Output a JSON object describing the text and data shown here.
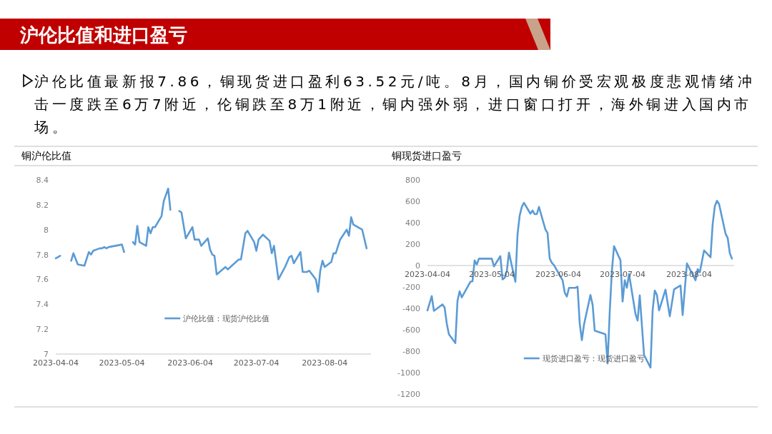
{
  "chart_data": [
    {
      "type": "other",
      "title": "沪伦比值和进口盈亏",
      "annotations": [
        "沪伦比值最新报7.86，铜现货进口盈利63.52元/吨。8月，国内铜价受宏观极度悲观情绪冲击一度跌至6万7附近，伦铜跌至8万1附近，铜内强外弱，进口窗口打开，海外铜进入国内市场。"
      ]
    },
    {
      "type": "line",
      "title": "铜沪伦比值",
      "xlim": [
        "2023-04-04",
        "2023-08-25"
      ],
      "xticks": [
        "2023-04-04",
        "2023-05-04",
        "2023-06-04",
        "2023-07-04",
        "2023-08-04"
      ],
      "ylim": [
        7,
        8.4
      ],
      "yticks": [
        7,
        7.2,
        7.4,
        7.6,
        7.8,
        8,
        8.2,
        8.4
      ],
      "legend": "bottom",
      "x": [
        "2023-04-04",
        "2023-04-06",
        "2023-04-08",
        "2023-04-11",
        "2023-04-12",
        "2023-04-14",
        "2023-04-17",
        "2023-04-19",
        "2023-04-20",
        "2023-04-21",
        "2023-04-24",
        "2023-04-25",
        "2023-04-26",
        "2023-04-27",
        "2023-04-28",
        "2023-05-04",
        "2023-05-05",
        "2023-05-07",
        "2023-05-09",
        "2023-05-10",
        "2023-05-11",
        "2023-05-12",
        "2023-05-15",
        "2023-05-16",
        "2023-05-17",
        "2023-05-18",
        "2023-05-19",
        "2023-05-22",
        "2023-05-23",
        "2023-05-25",
        "2023-05-26",
        "2023-05-28",
        "2023-05-30",
        "2023-05-31",
        "2023-06-02",
        "2023-06-05",
        "2023-06-06",
        "2023-06-08",
        "2023-06-09",
        "2023-06-12",
        "2023-06-13",
        "2023-06-14",
        "2023-06-15",
        "2023-06-16",
        "2023-06-20",
        "2023-06-21",
        "2023-06-26",
        "2023-06-27",
        "2023-06-29",
        "2023-06-30",
        "2023-07-03",
        "2023-07-04",
        "2023-07-05",
        "2023-07-07",
        "2023-07-10",
        "2023-07-11",
        "2023-07-12",
        "2023-07-14",
        "2023-07-17",
        "2023-07-19",
        "2023-07-20",
        "2023-07-21",
        "2023-07-24",
        "2023-07-25",
        "2023-07-27",
        "2023-07-28",
        "2023-07-31",
        "2023-08-01",
        "2023-08-02",
        "2023-08-03",
        "2023-08-04",
        "2023-08-07",
        "2023-08-08",
        "2023-08-09",
        "2023-08-11",
        "2023-08-14",
        "2023-08-15",
        "2023-08-16",
        "2023-08-17",
        "2023-08-21",
        "2023-08-23"
      ],
      "series": [
        {
          "name": "沪伦比值：现货沪伦比值",
          "color": "#5b9bd5",
          "values": [
            7.77,
            7.79,
            null,
            7.75,
            7.81,
            7.72,
            7.71,
            7.82,
            7.8,
            7.83,
            7.85,
            7.85,
            7.86,
            7.85,
            7.86,
            7.88,
            7.82,
            null,
            7.9,
            7.88,
            8.03,
            7.9,
            7.87,
            8.02,
            7.97,
            8.02,
            8.02,
            8.11,
            8.23,
            8.33,
            8.16,
            null,
            8.15,
            8.14,
            7.93,
            8.02,
            7.92,
            7.92,
            7.87,
            7.93,
            7.84,
            7.8,
            7.79,
            7.64,
            7.7,
            7.68,
            7.76,
            7.76,
            7.97,
            7.99,
            7.9,
            7.83,
            7.92,
            7.96,
            7.91,
            7.81,
            7.87,
            7.6,
            7.7,
            7.78,
            7.79,
            7.73,
            7.82,
            7.66,
            7.66,
            7.67,
            7.6,
            7.5,
            7.67,
            7.75,
            7.7,
            7.74,
            7.81,
            7.81,
            7.92,
            8,
            7.95,
            8.1,
            8.04,
            8,
            7.85
          ]
        }
      ]
    },
    {
      "type": "line",
      "title": "铜现货进口盈亏",
      "xlim": [
        "2023-04-04",
        "2023-08-25"
      ],
      "xticks": [
        "2023-04-04",
        "2023-05-04",
        "2023-06-04",
        "2023-07-04",
        "2023-08-04"
      ],
      "ylim": [
        -1200,
        800
      ],
      "yticks": [
        -1200,
        -1000,
        -800,
        -600,
        -400,
        -200,
        0,
        200,
        400,
        600,
        800
      ],
      "legend": "bottom",
      "x": [
        "2023-04-04",
        "2023-04-06",
        "2023-04-07",
        "2023-04-11",
        "2023-04-12",
        "2023-04-13",
        "2023-04-14",
        "2023-04-17",
        "2023-04-18",
        "2023-04-19",
        "2023-04-20",
        "2023-04-24",
        "2023-04-25",
        "2023-04-26",
        "2023-04-27",
        "2023-04-28",
        "2023-05-04",
        "2023-05-05",
        "2023-05-08",
        "2023-05-09",
        "2023-05-10",
        "2023-05-11",
        "2023-05-12",
        "2023-05-15",
        "2023-05-16",
        "2023-05-17",
        "2023-05-18",
        "2023-05-19",
        "2023-05-22",
        "2023-05-23",
        "2023-05-24",
        "2023-05-25",
        "2023-05-26",
        "2023-05-29",
        "2023-05-30",
        "2023-05-31",
        "2023-06-01",
        "2023-06-02",
        "2023-06-06",
        "2023-06-07",
        "2023-06-08",
        "2023-06-09",
        "2023-06-12",
        "2023-06-13",
        "2023-06-14",
        "2023-06-15",
        "2023-06-16",
        "2023-06-19",
        "2023-06-20",
        "2023-06-21",
        "2023-06-26",
        "2023-06-27",
        "2023-06-28",
        "2023-06-29",
        "2023-06-30",
        "2023-07-03",
        "2023-07-04",
        "2023-07-05",
        "2023-07-06",
        "2023-07-07",
        "2023-07-10",
        "2023-07-11",
        "2023-07-12",
        "2023-07-14",
        "2023-07-17",
        "2023-07-18",
        "2023-07-19",
        "2023-07-20",
        "2023-07-21",
        "2023-07-24",
        "2023-07-26",
        "2023-07-28",
        "2023-07-31",
        "2023-08-01",
        "2023-08-03",
        "2023-08-07",
        "2023-08-08",
        "2023-08-09",
        "2023-08-11",
        "2023-08-14",
        "2023-08-15",
        "2023-08-16",
        "2023-08-17",
        "2023-08-18",
        "2023-08-21",
        "2023-08-22",
        "2023-08-23",
        "2023-08-24"
      ],
      "series": [
        {
          "name": "现货进口盈亏：现货进口盈亏",
          "color": "#5b9bd5",
          "values": [
            -419,
            -285,
            -423,
            -363,
            -392,
            -541,
            -641,
            -724,
            -330,
            -241,
            -297,
            -152,
            -146,
            48,
            10,
            64,
            64,
            -8,
            88,
            -130,
            -115,
            -52,
            121,
            -152,
            292,
            466,
            548,
            586,
            485,
            514,
            480,
            480,
            548,
            337,
            304,
            66,
            26,
            4,
            -137,
            -252,
            -290,
            -208,
            -208,
            -197,
            -541,
            -697,
            -552,
            -275,
            -364,
            -608,
            -641,
            -915,
            -430,
            -52,
            182,
            49,
            -336,
            -137,
            -208,
            -79,
            -452,
            -514,
            -279,
            -835,
            -953,
            -419,
            -234,
            -274,
            -419,
            -225,
            -474,
            -223,
            -186,
            -463,
            19,
            -137,
            -34,
            -63,
            141,
            77,
            388,
            553,
            605,
            573,
            298,
            258,
            115,
            64
          ]
        }
      ]
    }
  ]
}
